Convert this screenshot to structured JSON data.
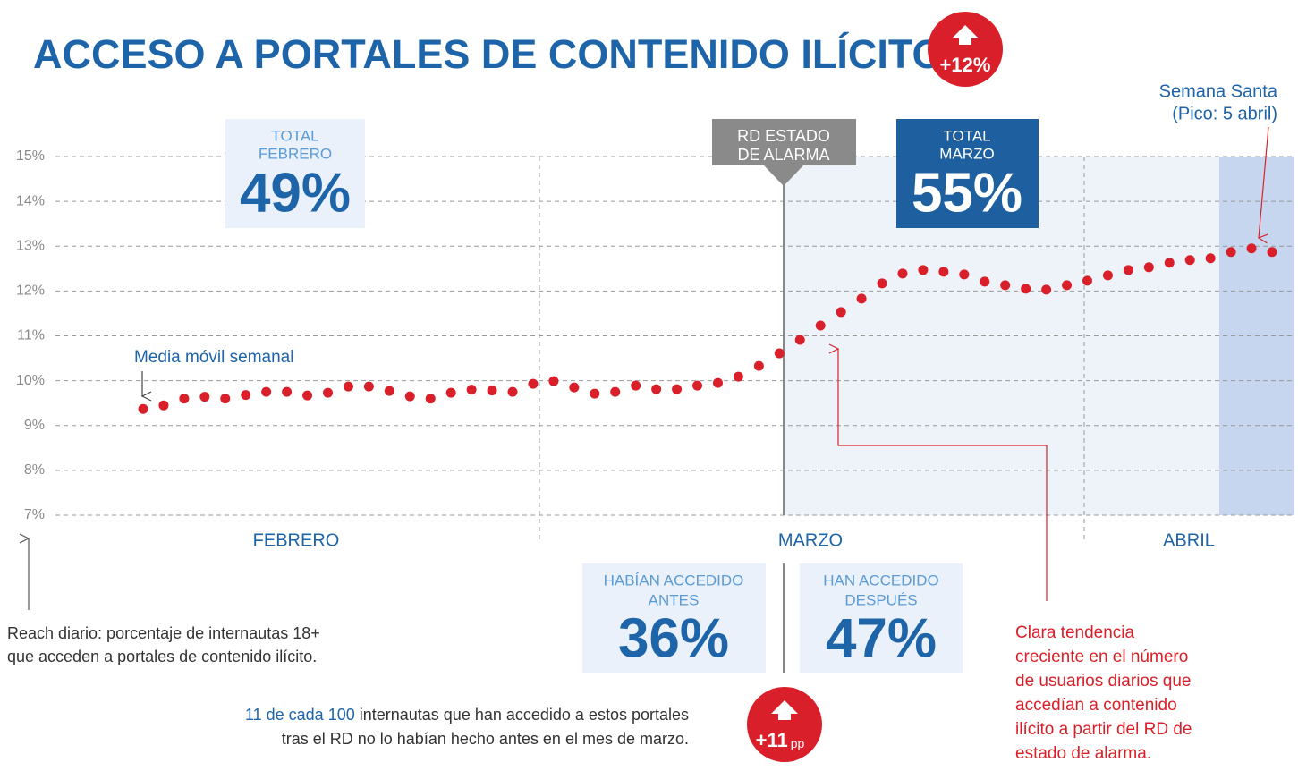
{
  "chart_data": {
    "type": "line",
    "title": "ACCESO A PORTALES DE CONTENIDO ILÍCITO",
    "color": "#d9202a",
    "categories": [
      null,
      null,
      null,
      null,
      null,
      null,
      null,
      null,
      null,
      null,
      null,
      null,
      null,
      null,
      null,
      null,
      null,
      null,
      null,
      null,
      null,
      null,
      null,
      null,
      null,
      null,
      null,
      null,
      null,
      null,
      null,
      null,
      null,
      null,
      null,
      null,
      null,
      null,
      null,
      null,
      null,
      null,
      null,
      null,
      null,
      null,
      null,
      null,
      null,
      null,
      null,
      null,
      null,
      null,
      null,
      null
    ],
    "values": [
      9.37,
      9.45,
      9.6,
      9.64,
      9.6,
      9.68,
      9.75,
      9.75,
      9.67,
      9.73,
      9.87,
      9.87,
      9.77,
      9.65,
      9.6,
      9.73,
      9.8,
      9.78,
      9.75,
      9.93,
      9.99,
      9.85,
      9.71,
      9.75,
      9.89,
      9.81,
      9.81,
      9.89,
      9.95,
      10.09,
      10.33,
      10.61,
      10.91,
      11.23,
      11.53,
      11.83,
      12.17,
      12.39,
      12.47,
      12.43,
      12.37,
      12.21,
      12.13,
      12.05,
      12.03,
      12.13,
      12.23,
      12.35,
      12.47,
      12.53,
      12.63,
      12.69,
      12.73,
      12.87,
      12.95,
      12.87
    ],
    "ylim": [
      7,
      15
    ],
    "yticks": [
      {
        "value": 7,
        "label": "7%"
      },
      {
        "value": 8,
        "label": "8%"
      },
      {
        "value": 9,
        "label": "9%"
      },
      {
        "value": 10,
        "label": "10%"
      },
      {
        "value": 11,
        "label": "11%"
      },
      {
        "value": 12,
        "label": "12%"
      },
      {
        "value": 13,
        "label": "13%"
      },
      {
        "value": 14,
        "label": "14%"
      },
      {
        "value": 15,
        "label": "15%"
      }
    ],
    "grid": true,
    "months": [
      "FEBRERO",
      "MARZO",
      "ABRIL"
    ],
    "badge_top": "+12%",
    "badge_bottom": {
      "value": "+11",
      "unit": "pp"
    },
    "total_feb": {
      "label": [
        "TOTAL",
        "FEBRERO"
      ],
      "value": "49%"
    },
    "total_mar": {
      "label": [
        "TOTAL",
        "MARZO"
      ],
      "value": "55%"
    },
    "rd": [
      "RD ESTADO",
      "DE ALARMA"
    ],
    "semana_santa": [
      "Semana Santa",
      "(Pico: 5 abril)"
    ],
    "media": "Media móvil semanal",
    "antes": {
      "label": [
        "HABÍAN ACCEDIDO",
        "ANTES"
      ],
      "value": "36%"
    },
    "despues": {
      "label": [
        "HAN ACCEDIDO",
        "DESPUÉS"
      ],
      "value": "47%"
    },
    "reach": [
      "Reach diario: porcentaje de internautas 18+",
      "que acceden a portales de contenido ilícito."
    ],
    "note": {
      "highlight": "11 de cada 100",
      "lines": [
        " internautas que han accedido a estos portales",
        "tras el RD no lo habían hecho antes en el mes de marzo."
      ]
    },
    "trend": [
      "Clara tendencia",
      "creciente en el número",
      "de usuarios diarios que",
      "accedían a contenido",
      "ilícito a partir del RD de",
      "estado de alarma."
    ]
  }
}
